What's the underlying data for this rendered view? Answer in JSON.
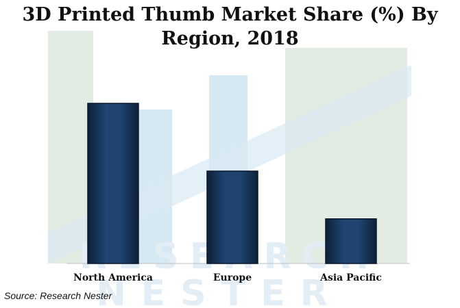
{
  "chart_data": {
    "type": "bar",
    "title_line1": "3D Printed Thumb Market Share (%) By",
    "title_line2": "Region, 2018",
    "categories": [
      "North America",
      "Europe",
      "Asia Pacific"
    ],
    "values": [
      52,
      30,
      14.5
    ],
    "ylim": [
      0,
      60
    ],
    "grid": false,
    "legend": "none",
    "bar_color": "#1d3b5f",
    "bar_edge_color": "#0b1a2e"
  },
  "watermark": {
    "line1": "RESEARCH",
    "line2": "NESTER"
  },
  "source": "Source: Research Nester"
}
